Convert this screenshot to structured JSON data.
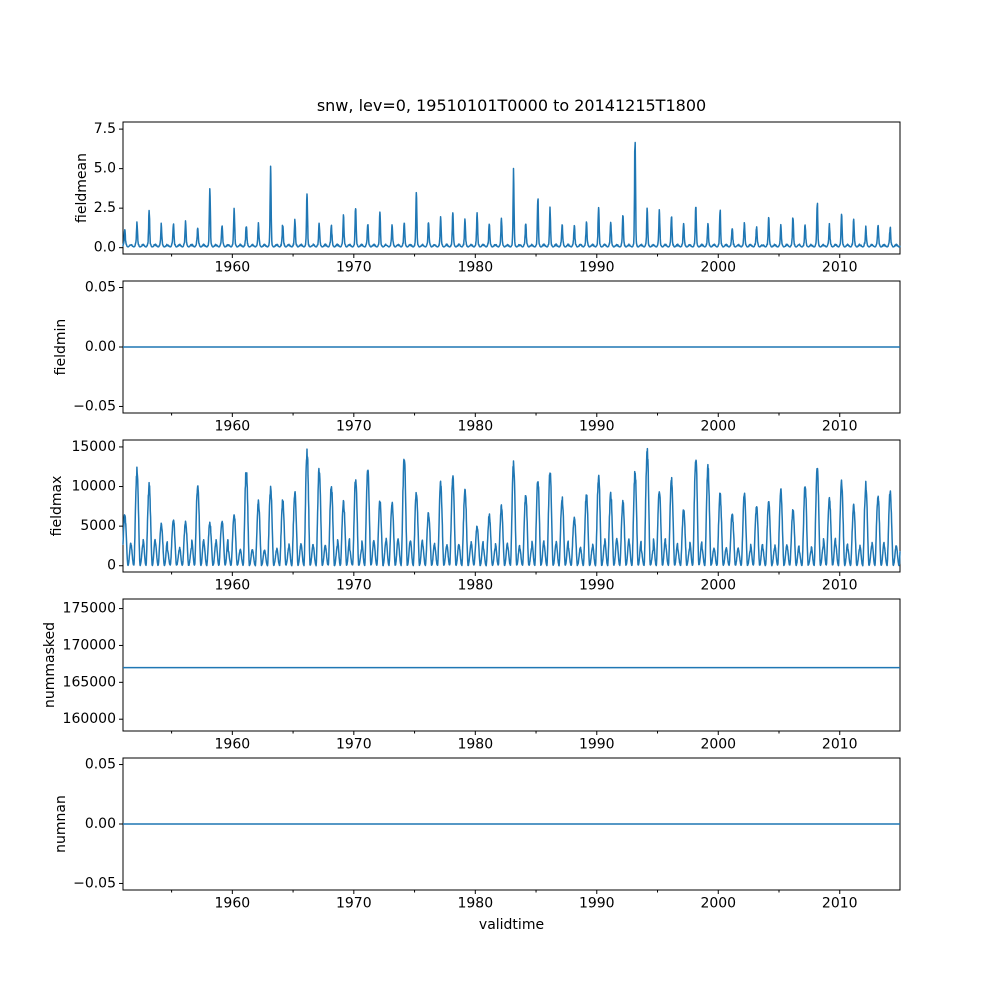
{
  "figure": {
    "title": "snw, lev=0, 19510101T0000 to 20141215T1800",
    "xlabel": "validtime",
    "background_color": "#ffffff",
    "line_color": "#1f77b4",
    "spine_color": "#000000",
    "text_color": "#000000",
    "x_start": 1951.0,
    "x_end": 2014.96,
    "xticks": [
      1960,
      1970,
      1980,
      1990,
      2000,
      2010
    ],
    "xtick_labels": [
      "1960",
      "1970",
      "1980",
      "1990",
      "2000",
      "2010"
    ],
    "xticks_minor": [
      1955,
      1965,
      1975,
      1985,
      1995,
      2005
    ]
  },
  "chart_data": [
    {
      "type": "line",
      "name": "fieldmean",
      "ylabel": "fieldmean",
      "series_kind": "seasonal-spiky",
      "ylim": [
        -0.4,
        7.95
      ],
      "yticks": [
        0.0,
        2.5,
        5.0,
        7.5
      ],
      "ytick_labels": [
        "0.0",
        "2.5",
        "5.0",
        "7.5"
      ],
      "baseline": 0.05,
      "peak_years_start": 1951,
      "annual_peaks": [
        1.2,
        1.7,
        2.6,
        1.5,
        1.6,
        1.8,
        1.4,
        4.1,
        1.6,
        2.6,
        1.6,
        1.5,
        5.1,
        1.6,
        1.8,
        3.7,
        1.7,
        1.5,
        2.1,
        2.9,
        1.6,
        2.4,
        1.5,
        1.7,
        4.1,
        1.8,
        2.1,
        2.4,
        1.9,
        2.3,
        1.6,
        2.0,
        5.0,
        1.7,
        3.4,
        2.7,
        1.6,
        1.5,
        1.7,
        2.9,
        1.7,
        2.2,
        7.5,
        2.6,
        2.5,
        2.2,
        1.6,
        2.8,
        1.6,
        2.6,
        1.3,
        1.6,
        1.4,
        2.0,
        1.4,
        2.2,
        1.6,
        3.0,
        1.5,
        2.3,
        1.9,
        1.4,
        1.6,
        1.3
      ]
    },
    {
      "type": "line",
      "name": "fieldmin",
      "ylabel": "fieldmin",
      "series_kind": "constant",
      "constant": 0.0,
      "ylim": [
        -0.0555,
        0.0555
      ],
      "yticks": [
        -0.05,
        0.0,
        0.05
      ],
      "ytick_labels": [
        "−0.05",
        "0.00",
        "0.05"
      ]
    },
    {
      "type": "line",
      "name": "fieldmax",
      "ylabel": "fieldmax",
      "series_kind": "seasonal-broad",
      "ylim": [
        -790,
        15875
      ],
      "yticks": [
        0,
        5000,
        10000,
        15000
      ],
      "ytick_labels": [
        "0",
        "5000",
        "10000",
        "15000"
      ],
      "peak_years_start": 1951,
      "annual_peaks": [
        6500,
        12300,
        10300,
        5300,
        5800,
        5600,
        10300,
        5400,
        5700,
        6400,
        12300,
        8100,
        9800,
        8300,
        9200,
        14700,
        12600,
        10100,
        8100,
        11100,
        12300,
        8300,
        7900,
        13900,
        9600,
        6700,
        10600,
        11300,
        9700,
        4900,
        6400,
        7500,
        13100,
        9100,
        10900,
        12100,
        8600,
        6100,
        9100,
        11600,
        9100,
        8100,
        11900,
        14800,
        9600,
        11100,
        7100,
        13800,
        12600,
        9100,
        6600,
        9100,
        7600,
        8100,
        9600,
        7100,
        10300,
        12400,
        8600,
        10600,
        7600,
        10400,
        8900,
        9400
      ]
    },
    {
      "type": "line",
      "name": "nummasked",
      "ylabel": "nummasked",
      "series_kind": "constant",
      "constant": 167000,
      "ylim": [
        158400,
        176300
      ],
      "yticks": [
        160000,
        165000,
        170000,
        175000
      ],
      "ytick_labels": [
        "160000",
        "165000",
        "170000",
        "175000"
      ]
    },
    {
      "type": "line",
      "name": "numnan",
      "ylabel": "numnan",
      "series_kind": "constant",
      "constant": 0.0,
      "ylim": [
        -0.0555,
        0.0555
      ],
      "yticks": [
        -0.05,
        0.0,
        0.05
      ],
      "ytick_labels": [
        "−0.05",
        "0.00",
        "0.05"
      ]
    }
  ]
}
